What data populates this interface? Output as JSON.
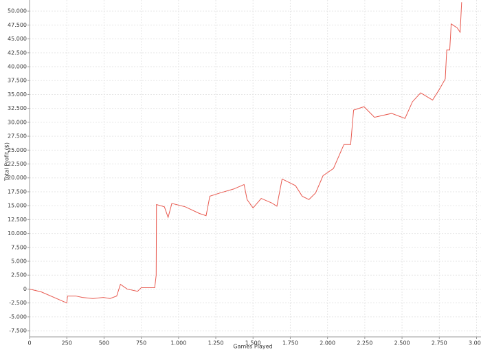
{
  "chart_data": {
    "type": "line",
    "x_label": "Games Played",
    "y_label": "Total Profit ($)",
    "xlim": [
      0,
      3030
    ],
    "ylim": [
      -8600,
      52000
    ],
    "xticks": [
      0,
      250,
      500,
      750,
      {
        "value": 1000,
        "label": "1.000"
      },
      {
        "value": 1250,
        "label": "1.250"
      },
      {
        "value": 1500,
        "label": "1.500"
      },
      {
        "value": 1750,
        "label": "1.750"
      },
      {
        "value": 2000,
        "label": "2.000"
      },
      {
        "value": 2250,
        "label": "2.250"
      },
      {
        "value": 2500,
        "label": "2.500"
      },
      {
        "value": 2750,
        "label": "2.750"
      },
      {
        "value": 3000,
        "label": "3.000"
      }
    ],
    "yticks": [
      {
        "value": -7500,
        "label": "-7.500"
      },
      {
        "value": -5000,
        "label": "-5.000"
      },
      {
        "value": -2500,
        "label": "-2.500"
      },
      0,
      {
        "value": 2500,
        "label": "2.500"
      },
      {
        "value": 5000,
        "label": "5.000"
      },
      {
        "value": 7500,
        "label": "7.500"
      },
      {
        "value": 10000,
        "label": "10.000"
      },
      {
        "value": 12500,
        "label": "12.500"
      },
      {
        "value": 15000,
        "label": "15.000"
      },
      {
        "value": 17500,
        "label": "17.500"
      },
      {
        "value": 20000,
        "label": "20.000"
      },
      {
        "value": 22500,
        "label": "22.500"
      },
      {
        "value": 25000,
        "label": "25.000"
      },
      {
        "value": 27500,
        "label": "27.500"
      },
      {
        "value": 30000,
        "label": "30.000"
      },
      {
        "value": 32500,
        "label": "32.500"
      },
      {
        "value": 35000,
        "label": "35.000"
      },
      {
        "value": 37500,
        "label": "37.500"
      },
      {
        "value": 40000,
        "label": "40.000"
      },
      {
        "value": 42500,
        "label": "42.500"
      },
      {
        "value": 45000,
        "label": "45.000"
      },
      {
        "value": 47500,
        "label": "47.500"
      },
      {
        "value": 50000,
        "label": "50.000"
      }
    ],
    "grid": true,
    "x": [
      0,
      78,
      250,
      255,
      310,
      355,
      425,
      495,
      540,
      585,
      610,
      655,
      725,
      750,
      820,
      840,
      850,
      852,
      905,
      930,
      955,
      1045,
      1140,
      1185,
      1210,
      1280,
      1370,
      1440,
      1460,
      1500,
      1555,
      1625,
      1660,
      1695,
      1740,
      1785,
      1830,
      1875,
      1920,
      1970,
      2040,
      2110,
      2155,
      2175,
      2245,
      2315,
      2430,
      2520,
      2570,
      2625,
      2705,
      2750,
      2790,
      2800,
      2820,
      2830,
      2870,
      2890,
      2900
    ],
    "series": [
      {
        "color": "#e8594f",
        "values": [
          0,
          -500,
          -2500,
          -1250,
          -1250,
          -1500,
          -1700,
          -1500,
          -1700,
          -1250,
          850,
          0,
          -400,
          250,
          250,
          250,
          2500,
          15200,
          14800,
          12900,
          15400,
          14800,
          13600,
          13200,
          16700,
          17300,
          18000,
          18800,
          16100,
          14600,
          16300,
          15500,
          14900,
          19800,
          19200,
          18600,
          16700,
          16100,
          17300,
          20400,
          21700,
          26000,
          26000,
          32200,
          32800,
          30900,
          31600,
          30700,
          33700,
          35300,
          34000,
          35900,
          37800,
          43000,
          43000,
          47700,
          47000,
          46200,
          51600
        ]
      }
    ]
  }
}
